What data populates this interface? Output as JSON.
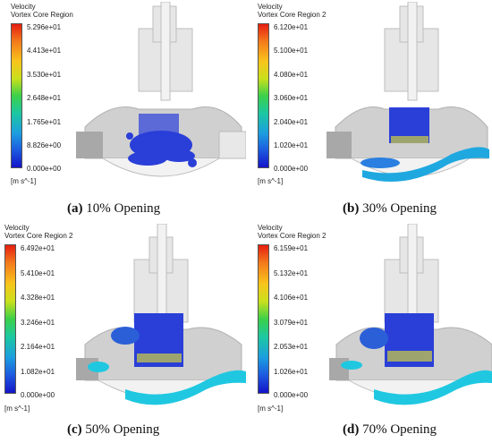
{
  "panels": [
    {
      "legend_title_1": "Velocity",
      "legend_title_2": "Vortex Core Region",
      "ticks": [
        "5.296e+01",
        "4.413e+01",
        "3.530e+01",
        "2.648e+01",
        "1.765e+01",
        "8.826e+00",
        "0.000e+00"
      ],
      "unit": "[m s^-1]",
      "caption_letter": "(a)",
      "caption_text": " 10% Opening"
    },
    {
      "legend_title_1": "Velocity",
      "legend_title_2": "Vortex Core Region 2",
      "ticks": [
        "6.120e+01",
        "5.100e+01",
        "4.080e+01",
        "3.060e+01",
        "2.040e+01",
        "1.020e+01",
        "0.000e+00"
      ],
      "unit": "[m s^-1]",
      "caption_letter": "(b)",
      "caption_text": " 30% Opening"
    },
    {
      "legend_title_1": "Velocity",
      "legend_title_2": "Vortex Core Region 2",
      "ticks": [
        "6.492e+01",
        "5.410e+01",
        "4.328e+01",
        "3.246e+01",
        "2.164e+01",
        "1.082e+01",
        "0.000e+00"
      ],
      "unit": "[m s^-1]",
      "caption_letter": "(c)",
      "caption_text": " 50% Opening"
    },
    {
      "legend_title_1": "Velocity",
      "legend_title_2": "Vortex Core Region 2",
      "ticks": [
        "6.159e+01",
        "5.132e+01",
        "4.106e+01",
        "3.079e+01",
        "2.053e+01",
        "1.026e+01",
        "0.000e+00"
      ],
      "unit": "[m s^-1]",
      "caption_letter": "(d)",
      "caption_text": " 70% Opening"
    }
  ],
  "colors": {
    "valve_body": "#d9d9d9",
    "valve_dark": "#a8a8a8",
    "vortex_blue": "#2a3fd8",
    "vortex_cyan": "#1fc8e0"
  }
}
